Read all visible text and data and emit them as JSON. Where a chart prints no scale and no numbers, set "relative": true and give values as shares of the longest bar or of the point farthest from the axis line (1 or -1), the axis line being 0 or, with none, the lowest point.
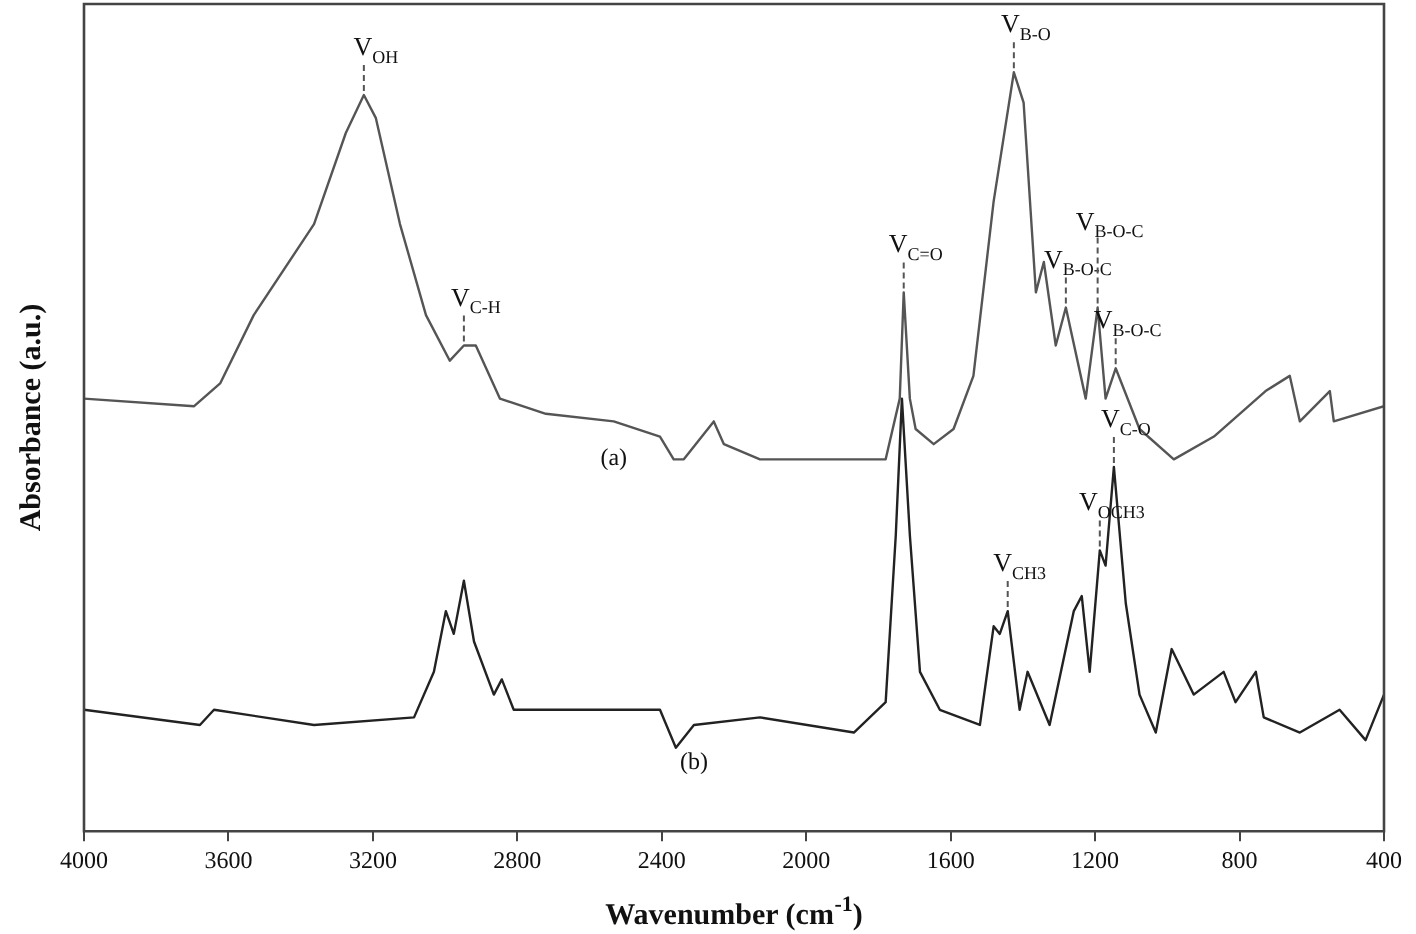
{
  "chart_data": {
    "type": "line",
    "relative": true,
    "xlabel": "Wavenumber (cm$^{-1}$)",
    "ylabel": "Absorbance (a.u.)",
    "xlim": [
      4000,
      400
    ],
    "xticks": [
      4000,
      3600,
      3200,
      2800,
      2400,
      2000,
      1600,
      1200,
      800,
      400
    ],
    "grid": false,
    "legend": false,
    "marker": "none",
    "line_style": "solid",
    "series": [
      {
        "name": "(a)",
        "color": "#555555",
        "x": [
          4000,
          3695,
          3623,
          3530,
          3363,
          3275,
          3225,
          3192,
          3125,
          3053,
          2987,
          2948,
          2915,
          2848,
          2721,
          2533,
          2405,
          2367,
          2339,
          2256,
          2228,
          2128,
          1780,
          1741,
          1730,
          1713,
          1697,
          1647,
          1592,
          1537,
          1481,
          1425,
          1398,
          1364,
          1342,
          1309,
          1281,
          1226,
          1193,
          1171,
          1143,
          1077,
          982,
          871,
          728,
          661,
          633,
          550,
          539,
          400
        ],
        "values": [
          0.57,
          0.56,
          0.59,
          0.68,
          0.8,
          0.92,
          0.97,
          0.94,
          0.8,
          0.68,
          0.62,
          0.64,
          0.64,
          0.57,
          0.55,
          0.54,
          0.52,
          0.49,
          0.49,
          0.54,
          0.51,
          0.49,
          0.49,
          0.57,
          0.71,
          0.57,
          0.53,
          0.51,
          0.53,
          0.6,
          0.83,
          1,
          0.96,
          0.71,
          0.75,
          0.64,
          0.69,
          0.57,
          0.69,
          0.57,
          0.61,
          0.53,
          0.49,
          0.52,
          0.58,
          0.6,
          0.54,
          0.58,
          0.54,
          0.56
        ]
      },
      {
        "name": "(b)",
        "color": "#222222",
        "x": [
          4000,
          3679,
          3640,
          3363,
          3086,
          3031,
          2998,
          2976,
          2948,
          2920,
          2865,
          2843,
          2810,
          2405,
          2361,
          2311,
          2128,
          1868,
          1780,
          1752,
          1735,
          1713,
          1685,
          1630,
          1519,
          1481,
          1464,
          1442,
          1409,
          1387,
          1326,
          1259,
          1237,
          1215,
          1187,
          1171,
          1148,
          1115,
          1077,
          1032,
          988,
          927,
          844,
          811,
          755,
          733,
          633,
          523,
          451,
          400
        ],
        "values": [
          0.16,
          0.14,
          0.16,
          0.14,
          0.15,
          0.21,
          0.29,
          0.26,
          0.33,
          0.25,
          0.18,
          0.2,
          0.16,
          0.16,
          0.11,
          0.14,
          0.15,
          0.13,
          0.17,
          0.39,
          0.57,
          0.39,
          0.21,
          0.16,
          0.14,
          0.27,
          0.26,
          0.29,
          0.16,
          0.21,
          0.14,
          0.29,
          0.31,
          0.21,
          0.37,
          0.35,
          0.48,
          0.3,
          0.18,
          0.13,
          0.24,
          0.18,
          0.21,
          0.17,
          0.21,
          0.15,
          0.13,
          0.16,
          0.12,
          0.18
        ]
      }
    ],
    "annotations": [
      {
        "text": "V$_{OH}$",
        "x": 3225,
        "y": 0.97
      },
      {
        "text": "V$_{C-H}$",
        "x": 2948,
        "y": 0.64
      },
      {
        "text": "V$_{C=O}$",
        "x": 1730,
        "y": 0.71
      },
      {
        "text": "V$_{B-O}$",
        "x": 1425,
        "y": 1
      },
      {
        "text": "V$_{B-O-C}$",
        "x": 1281,
        "y": 0.69
      },
      {
        "text": "V$_{B-O-C}$",
        "x": 1193,
        "y": 0.69
      },
      {
        "text": "V$_{B-O-C}$",
        "x": 1143,
        "y": 0.61
      },
      {
        "text": "V$_{CH3}$",
        "x": 1442,
        "y": 0.29
      },
      {
        "text": "V$_{OCH3}$",
        "x": 1187,
        "y": 0.37
      },
      {
        "text": "V$_{C-O}$",
        "x": 1148,
        "y": 0.48
      }
    ]
  }
}
